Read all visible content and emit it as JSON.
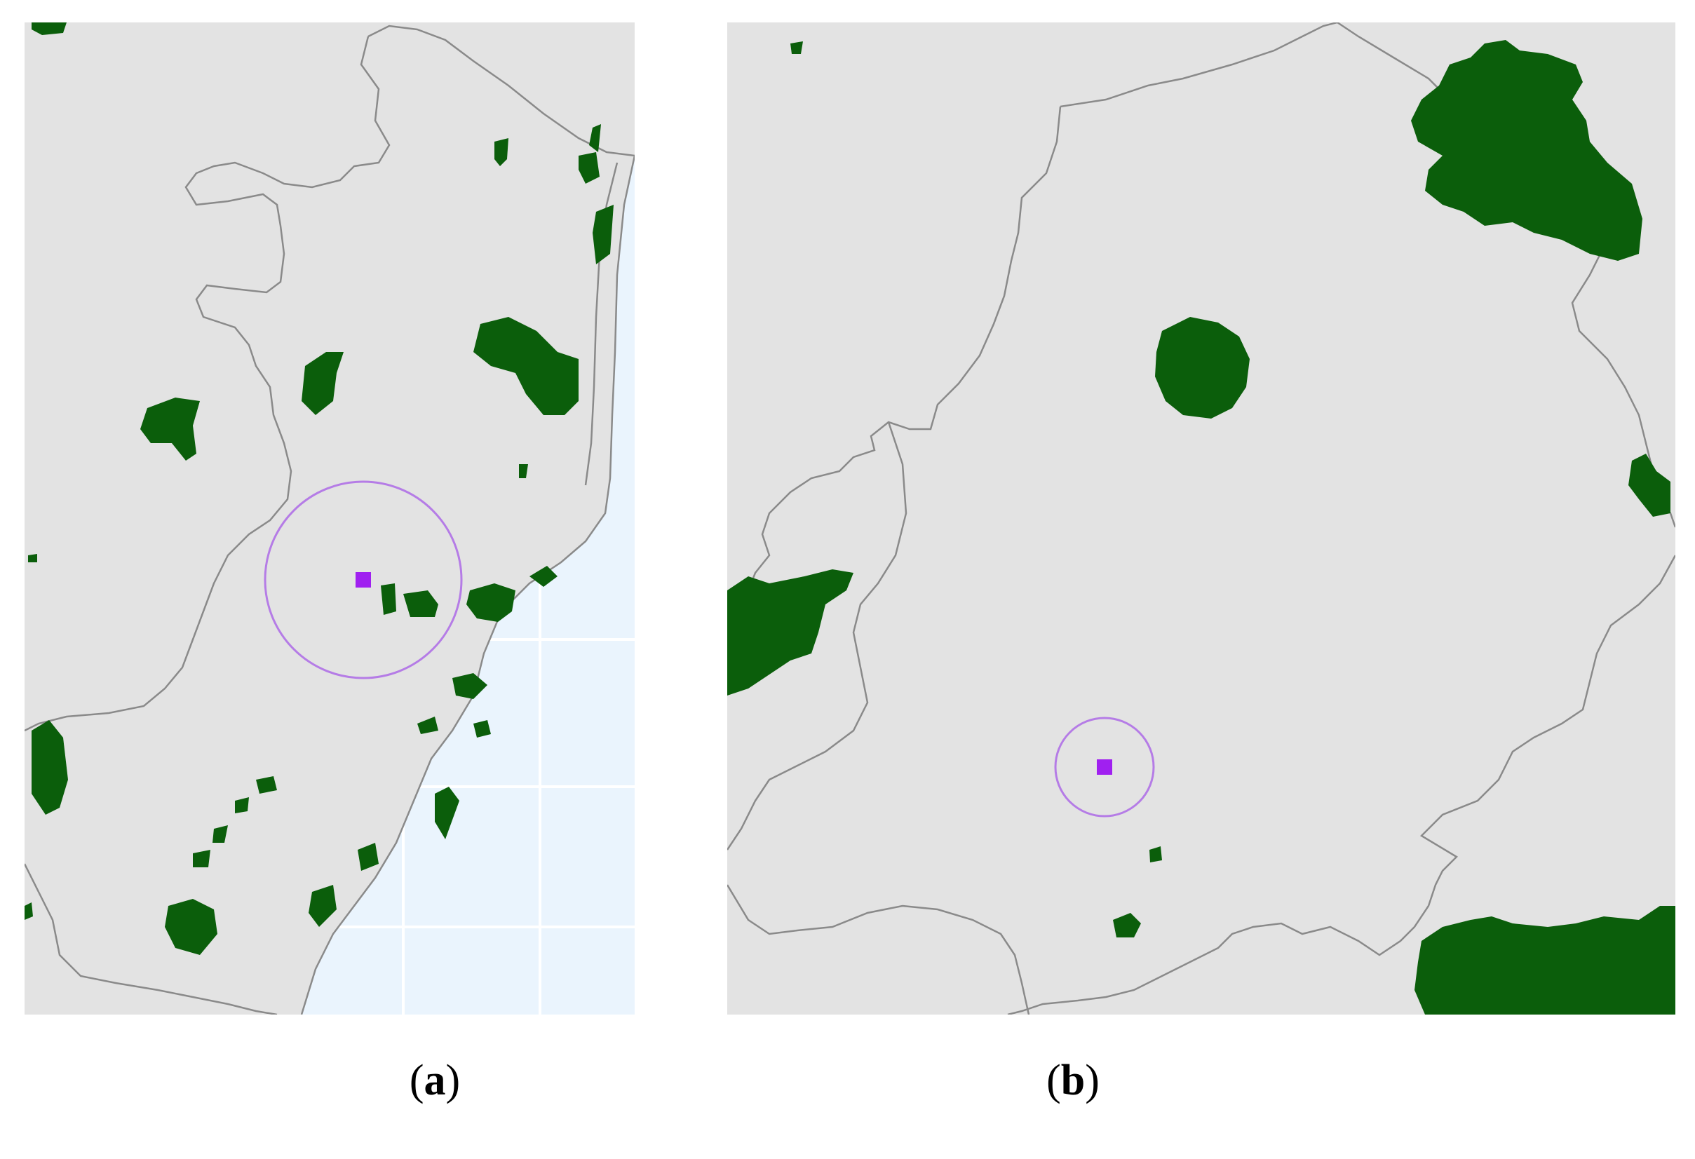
{
  "figure": {
    "panels": [
      {
        "id": "a",
        "label": "a",
        "caption_open": "(",
        "caption_close": ")"
      },
      {
        "id": "b",
        "label": "b",
        "caption_open": "(",
        "caption_close": ")"
      }
    ]
  },
  "colors": {
    "land": "#e3e3e3",
    "sea": "#eaf4fd",
    "sea_grid": "#ffffff",
    "boundary": "#8a8a8a",
    "protected_area": "#0b5e0b",
    "buffer_ring": "#b57ce6",
    "site_marker": "#a020f0",
    "caption_text": "#000000"
  },
  "icons": {
    "site_marker": "square-marker-icon",
    "buffer_ring": "circle-buffer-icon"
  }
}
